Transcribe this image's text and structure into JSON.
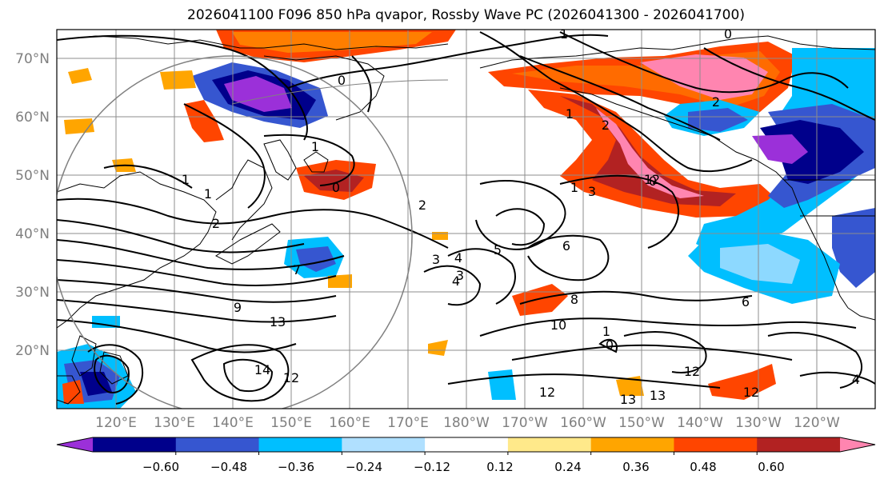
{
  "title": "2026041100 F096 850 hPa qvapor, Rossby Wave PC (2026041300 - 2026041700)",
  "lat_labels": [
    "70°N",
    "60°N",
    "50°N",
    "40°N",
    "30°N",
    "20°N"
  ],
  "lon_labels": [
    "120°E",
    "130°E",
    "140°E",
    "150°E",
    "160°E",
    "170°E",
    "180°W",
    "170°W",
    "160°W",
    "150°W",
    "140°W",
    "130°W",
    "120°W"
  ],
  "colorbar": {
    "colors": [
      "#9b30d9",
      "#00008b",
      "#3656d0",
      "#00bfff",
      "#b0e0ff",
      "#ffffff",
      "#ffe98a",
      "#ffa500",
      "#ff4500",
      "#b22222",
      "#ff85b0"
    ],
    "tick_labels": [
      "−0.60",
      "−0.48",
      "−0.36",
      "−0.24",
      "−0.12",
      "0.12",
      "0.24",
      "0.36",
      "0.48",
      "0.60"
    ]
  },
  "contour_labels": [
    "1",
    "0",
    "0",
    "2",
    "0",
    "1",
    "1",
    "2",
    "1",
    "1",
    "0",
    "3",
    "4",
    "3",
    "2",
    "2",
    "6",
    "5",
    "4",
    "3",
    "7",
    "6",
    "8",
    "10",
    "9",
    "13",
    "12",
    "14",
    "12",
    "13",
    "12",
    "13",
    "12",
    "4",
    "12",
    "0",
    "1",
    "1"
  ],
  "map_features": [
    "coastlines",
    "graticule",
    "qvapor-shading",
    "rossby-wave-pc-contours",
    "reference-circle"
  ]
}
